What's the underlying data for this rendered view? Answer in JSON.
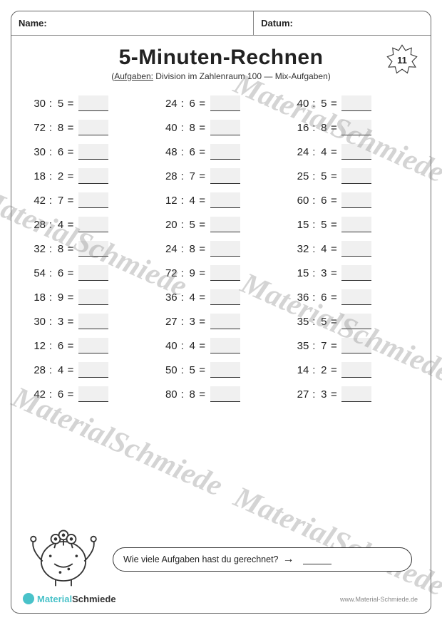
{
  "header": {
    "name_label": "Name:",
    "date_label": "Datum:"
  },
  "title": "5-Minuten-Rechnen",
  "subtitle_prefix": "Aufgaben:",
  "subtitle_rest": " Division im Zahlenraum 100 — Mix-Aufgaben)",
  "page_number": "11",
  "watermark_text": "MaterialSchmiede",
  "operator": ":",
  "equals": "=",
  "problems_col1": [
    {
      "a": "30",
      "b": "5"
    },
    {
      "a": "72",
      "b": "8"
    },
    {
      "a": "30",
      "b": "6"
    },
    {
      "a": "18",
      "b": "2"
    },
    {
      "a": "42",
      "b": "7"
    },
    {
      "a": "28",
      "b": "4"
    },
    {
      "a": "32",
      "b": "8"
    },
    {
      "a": "54",
      "b": "6"
    },
    {
      "a": "18",
      "b": "9"
    },
    {
      "a": "30",
      "b": "3"
    },
    {
      "a": "12",
      "b": "6"
    },
    {
      "a": "28",
      "b": "4"
    },
    {
      "a": "42",
      "b": "6"
    }
  ],
  "problems_col2": [
    {
      "a": "24",
      "b": "6"
    },
    {
      "a": "40",
      "b": "8"
    },
    {
      "a": "48",
      "b": "6"
    },
    {
      "a": "28",
      "b": "7"
    },
    {
      "a": "12",
      "b": "4"
    },
    {
      "a": "20",
      "b": "5"
    },
    {
      "a": "24",
      "b": "8"
    },
    {
      "a": "72",
      "b": "9"
    },
    {
      "a": "36",
      "b": "4"
    },
    {
      "a": "27",
      "b": "3"
    },
    {
      "a": "40",
      "b": "4"
    },
    {
      "a": "50",
      "b": "5"
    },
    {
      "a": "80",
      "b": "8"
    }
  ],
  "problems_col3": [
    {
      "a": "40",
      "b": "5"
    },
    {
      "a": "16",
      "b": "8"
    },
    {
      "a": "24",
      "b": "4"
    },
    {
      "a": "25",
      "b": "5"
    },
    {
      "a": "60",
      "b": "6"
    },
    {
      "a": "15",
      "b": "5"
    },
    {
      "a": "32",
      "b": "4"
    },
    {
      "a": "15",
      "b": "3"
    },
    {
      "a": "36",
      "b": "6"
    },
    {
      "a": "35",
      "b": "5"
    },
    {
      "a": "35",
      "b": "7"
    },
    {
      "a": "14",
      "b": "2"
    },
    {
      "a": "27",
      "b": "3"
    }
  ],
  "footer": {
    "question": "Wie viele Aufgaben hast du gerechnet?",
    "arrow": "→"
  },
  "brand": {
    "part1": "Material",
    "part2": "Schmiede"
  },
  "site_url": "www.Material-Schmiede.de",
  "colors": {
    "border": "#666666",
    "text": "#222222",
    "answer_bg": "#f0f0f0",
    "watermark": "rgba(120,120,120,0.32)",
    "brand_accent": "#49c2c9"
  }
}
